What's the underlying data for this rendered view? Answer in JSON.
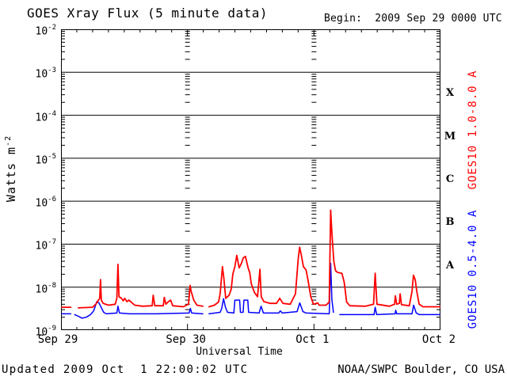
{
  "header": {
    "title": "GOES Xray Flux (5 minute data)",
    "begin_label": "Begin:  2009 Sep 29 0000 UTC"
  },
  "footer": {
    "updated": "Updated 2009 Oct  1 22:00:02 UTC",
    "source": "NOAA/SWPC Boulder, CO USA"
  },
  "colors": {
    "background": "#ffffff",
    "axis": "#000000",
    "long_channel": "#ff0000",
    "short_channel": "#0000ff"
  },
  "chart_data": {
    "type": "line",
    "title": "GOES Xray Flux (5 minute data)",
    "xlabel": "Universal Time",
    "ylabel": {
      "base": "Watts m",
      "sup": "-2"
    },
    "x_axis": {
      "unit": "hours since 2009 Sep 29 0000 UTC",
      "range": [
        0,
        72
      ],
      "day_tick_hours": [
        0,
        24,
        48,
        72
      ],
      "day_tick_labels": [
        "Sep 29",
        "Sep 30",
        "Oct 1",
        "Oct 2"
      ],
      "minor_tick_step_hours": 3,
      "day_gridlines_at_hours": [
        24,
        48
      ]
    },
    "y_axis": {
      "scale": "log",
      "range": [
        1e-09,
        0.01
      ],
      "tick_exponents": [
        -2,
        -3,
        -4,
        -5,
        -6,
        -7,
        -8,
        -9
      ],
      "solid_gridline_exponents": [
        -3,
        -4,
        -5,
        -6,
        -7,
        -8
      ]
    },
    "flux_classes": [
      {
        "label": "X",
        "between_exponents": [
          -4,
          -3
        ]
      },
      {
        "label": "M",
        "between_exponents": [
          -5,
          -4
        ]
      },
      {
        "label": "C",
        "between_exponents": [
          -6,
          -5
        ]
      },
      {
        "label": "B",
        "between_exponents": [
          -7,
          -6
        ]
      },
      {
        "label": "A",
        "between_exponents": [
          -8,
          -7
        ]
      }
    ],
    "series": [
      {
        "name": "GOES10 0.5-4.0 A",
        "color": "#0000ff",
        "stroke_width": 1.5,
        "segments": [
          [
            [
              0,
              2.4e-09
            ],
            [
              1.85,
              2.4e-09
            ]
          ],
          [
            [
              2.6,
              2.3e-09
            ],
            [
              3.3,
              2.1e-09
            ],
            [
              4.0,
              1.9e-09
            ],
            [
              4.8,
              2e-09
            ],
            [
              5.6,
              2.3e-09
            ],
            [
              6.2,
              2.8e-09
            ],
            [
              6.8,
              4.6e-09
            ],
            [
              7.2,
              4.3e-09
            ],
            [
              7.6,
              3.4e-09
            ],
            [
              8.1,
              2.6e-09
            ],
            [
              8.6,
              2.4e-09
            ],
            [
              10.6,
              2.5e-09
            ],
            [
              10.8,
              3.6e-09
            ],
            [
              11.1,
              2.5e-09
            ],
            [
              13.0,
              2.4e-09
            ],
            [
              18.0,
              2.4e-09
            ],
            [
              24.3,
              2.5e-09
            ],
            [
              24.55,
              3.2e-09
            ],
            [
              24.8,
              2.5e-09
            ],
            [
              26.9,
              2.4e-09
            ]
          ],
          [
            [
              28.1,
              2.4e-09
            ],
            [
              30.2,
              2.6e-09
            ],
            [
              30.5,
              3.2e-09
            ],
            [
              30.85,
              5.4e-09
            ],
            [
              31.2,
              3.4e-09
            ],
            [
              31.6,
              2.6e-09
            ],
            [
              32.8,
              2.5e-09
            ],
            [
              33.0,
              5e-09
            ],
            [
              33.9,
              5e-09
            ],
            [
              34.05,
              2.6e-09
            ],
            [
              34.55,
              2.6e-09
            ],
            [
              34.7,
              5e-09
            ],
            [
              35.45,
              5e-09
            ],
            [
              35.6,
              2.6e-09
            ],
            [
              37.6,
              2.5e-09
            ],
            [
              37.95,
              3.6e-09
            ],
            [
              38.4,
              2.5e-09
            ],
            [
              41.3,
              2.5e-09
            ],
            [
              41.6,
              2.8e-09
            ],
            [
              42.0,
              2.5e-09
            ],
            [
              44.8,
              2.7e-09
            ],
            [
              45.3,
              4.3e-09
            ],
            [
              45.9,
              2.7e-09
            ],
            [
              46.5,
              2.5e-09
            ],
            [
              50.9,
              2.4e-09
            ],
            [
              51.17,
              3.6e-08
            ],
            [
              51.4,
              5e-09
            ],
            [
              51.7,
              2.6e-09
            ]
          ],
          [
            [
              52.9,
              2.3e-09
            ],
            [
              59.4,
              2.3e-09
            ],
            [
              59.62,
              3.4e-09
            ],
            [
              59.9,
              2.3e-09
            ],
            [
              63.4,
              2.4e-09
            ],
            [
              63.5,
              2.9e-09
            ],
            [
              63.7,
              2.4e-09
            ],
            [
              66.6,
              2.4e-09
            ],
            [
              66.9,
              3.8e-09
            ],
            [
              67.4,
              2.5e-09
            ],
            [
              68.0,
              2.3e-09
            ],
            [
              72,
              2.3e-09
            ]
          ]
        ]
      },
      {
        "name": "GOES10 1.0-8.0 A",
        "color": "#ff0000",
        "stroke_width": 1.8,
        "segments": [
          [
            [
              0,
              3.4e-09
            ],
            [
              1.85,
              3.4e-09
            ]
          ],
          [
            [
              3.3,
              3.3e-09
            ],
            [
              6.0,
              3.4e-09
            ],
            [
              6.6,
              4e-09
            ],
            [
              7.1,
              5e-09
            ],
            [
              7.35,
              5.5e-09
            ],
            [
              7.5,
              1.5e-08
            ],
            [
              7.65,
              5e-09
            ],
            [
              8.0,
              4.2e-09
            ],
            [
              9.0,
              3.8e-09
            ],
            [
              10.3,
              4e-09
            ],
            [
              10.6,
              5.5e-09
            ],
            [
              10.8,
              3.4e-08
            ],
            [
              11.0,
              6e-09
            ],
            [
              11.5,
              5.5e-09
            ],
            [
              11.8,
              4.8e-09
            ],
            [
              12.1,
              5.5e-09
            ],
            [
              12.5,
              4.6e-09
            ],
            [
              12.9,
              5e-09
            ],
            [
              13.4,
              4.4e-09
            ],
            [
              14.0,
              3.8e-09
            ],
            [
              15.5,
              3.6e-09
            ],
            [
              17.3,
              3.7e-09
            ],
            [
              17.5,
              6.5e-09
            ],
            [
              17.8,
              3.7e-09
            ],
            [
              19.4,
              3.7e-09
            ],
            [
              19.6,
              5.8e-09
            ],
            [
              19.9,
              4e-09
            ],
            [
              20.3,
              4.5e-09
            ],
            [
              20.8,
              5e-09
            ],
            [
              21.2,
              3.7e-09
            ],
            [
              23.2,
              3.5e-09
            ],
            [
              24.2,
              4e-09
            ],
            [
              24.5,
              1.1e-08
            ],
            [
              24.7,
              8e-09
            ],
            [
              25.2,
              5e-09
            ],
            [
              25.8,
              3.8e-09
            ],
            [
              26.9,
              3.6e-09
            ]
          ],
          [
            [
              28.1,
              3.5e-09
            ],
            [
              29.1,
              3.8e-09
            ],
            [
              29.9,
              4.5e-09
            ],
            [
              30.2,
              7e-09
            ],
            [
              30.64,
              3e-08
            ],
            [
              30.9,
              1.6e-08
            ],
            [
              31.25,
              5.5e-09
            ],
            [
              31.9,
              6.5e-09
            ],
            [
              32.3,
              9e-09
            ],
            [
              32.6,
              2e-08
            ],
            [
              33.0,
              3e-08
            ],
            [
              33.36,
              5.5e-08
            ],
            [
              33.8,
              2.8e-08
            ],
            [
              34.2,
              3.5e-08
            ],
            [
              34.6,
              4.8e-08
            ],
            [
              35.0,
              5.2e-08
            ],
            [
              35.5,
              2.8e-08
            ],
            [
              35.8,
              2.2e-08
            ],
            [
              36.1,
              1.2e-08
            ],
            [
              36.7,
              7.5e-09
            ],
            [
              37.3,
              6e-09
            ],
            [
              37.74,
              2.6e-08
            ],
            [
              38.0,
              6e-09
            ],
            [
              38.5,
              4.6e-09
            ],
            [
              39.7,
              4.2e-09
            ],
            [
              40.9,
              4.2e-09
            ],
            [
              41.5,
              5.5e-09
            ],
            [
              42.1,
              4.2e-09
            ],
            [
              43.5,
              4e-09
            ],
            [
              44.5,
              7e-09
            ],
            [
              45.0,
              4.5e-08
            ],
            [
              45.28,
              8.5e-08
            ],
            [
              45.6,
              5.5e-08
            ],
            [
              46.0,
              3e-08
            ],
            [
              46.5,
              2.5e-08
            ],
            [
              46.9,
              1.4e-08
            ],
            [
              47.4,
              6e-09
            ],
            [
              47.9,
              4e-09
            ],
            [
              48.7,
              4.3e-09
            ],
            [
              49.0,
              3.8e-09
            ],
            [
              50.3,
              3.8e-09
            ],
            [
              50.9,
              4.5e-09
            ],
            [
              51.17,
              6.2e-07
            ],
            [
              51.35,
              2.4e-07
            ],
            [
              51.5,
              1.2e-07
            ],
            [
              51.77,
              4e-08
            ],
            [
              52.1,
              2.4e-08
            ],
            [
              52.5,
              2.2e-08
            ],
            [
              53.3,
              2.1e-08
            ],
            [
              53.74,
              1.3e-08
            ],
            [
              54.2,
              4.5e-09
            ],
            [
              54.8,
              3.7e-09
            ],
            [
              57.8,
              3.6e-09
            ],
            [
              59.3,
              4e-09
            ],
            [
              59.62,
              2.1e-08
            ],
            [
              59.95,
              4e-09
            ],
            [
              62.3,
              3.6e-09
            ],
            [
              63.3,
              4e-09
            ],
            [
              63.45,
              6.3e-09
            ],
            [
              63.7,
              4e-09
            ],
            [
              64.2,
              4.2e-09
            ],
            [
              64.35,
              7e-09
            ],
            [
              64.6,
              3.9e-09
            ],
            [
              66.1,
              3.7e-09
            ],
            [
              66.6,
              8e-09
            ],
            [
              66.87,
              1.9e-08
            ],
            [
              67.2,
              1.5e-08
            ],
            [
              67.5,
              8e-09
            ],
            [
              67.95,
              4e-09
            ],
            [
              68.7,
              3.5e-09
            ],
            [
              72,
              3.5e-09
            ]
          ]
        ]
      }
    ]
  }
}
